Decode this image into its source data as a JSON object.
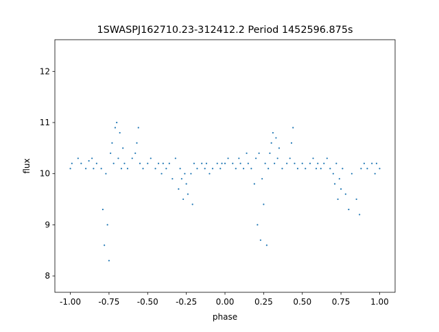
{
  "chart_data": {
    "type": "scatter",
    "title": "1SWASPJ162710.23-312412.2 Period 1452596.875s",
    "xlabel": "phase",
    "ylabel": "flux",
    "xlim": [
      -1.1,
      1.1
    ],
    "ylim": [
      7.68,
      12.62
    ],
    "xticks": [
      "-1.00",
      "-0.75",
      "-0.50",
      "-0.25",
      "0.00",
      "0.25",
      "0.50",
      "0.75",
      "1.00"
    ],
    "yticks": [
      "8",
      "9",
      "10",
      "11",
      "12"
    ],
    "grid": false,
    "legend": "none",
    "marker_color": "#1f77b4",
    "series": [
      {
        "x": [
          -1.0,
          -0.99,
          -0.95,
          -0.93,
          -0.9,
          -0.88,
          -0.86,
          -0.85,
          -0.83,
          -0.8,
          -0.79,
          -0.78,
          -0.77,
          -0.76,
          -0.75,
          -0.74,
          -0.73,
          -0.72,
          -0.71,
          -0.7,
          -0.69,
          -0.68,
          -0.67,
          -0.66,
          -0.65,
          -0.63,
          -0.6,
          -0.58,
          -0.57,
          -0.56,
          -0.55,
          -0.53,
          -0.5,
          -0.48,
          -0.45,
          -0.43,
          -0.41,
          -0.4,
          -0.38,
          -0.36,
          -0.34,
          -0.32,
          -0.3,
          -0.29,
          -0.28,
          -0.27,
          -0.26,
          -0.25,
          -0.24,
          -0.22,
          -0.21,
          -0.2,
          -0.18,
          -0.15,
          -0.13,
          -0.12,
          -0.1,
          -0.08,
          -0.05,
          -0.03,
          -0.02,
          0.0,
          0.02,
          0.05,
          0.07,
          0.09,
          0.1,
          0.12,
          0.14,
          0.15,
          0.17,
          0.19,
          0.2,
          0.21,
          0.22,
          0.23,
          0.24,
          0.25,
          0.26,
          0.27,
          0.28,
          0.29,
          0.3,
          0.31,
          0.32,
          0.33,
          0.34,
          0.35,
          0.37,
          0.4,
          0.42,
          0.43,
          0.44,
          0.45,
          0.47,
          0.5,
          0.52,
          0.55,
          0.57,
          0.59,
          0.6,
          0.62,
          0.64,
          0.66,
          0.68,
          0.7,
          0.71,
          0.72,
          0.73,
          0.74,
          0.75,
          0.76,
          0.78,
          0.8,
          0.82,
          0.85,
          0.87,
          0.88,
          0.9,
          0.92,
          0.95,
          0.97,
          0.98,
          1.0
        ],
        "y": [
          10.1,
          10.2,
          10.3,
          10.2,
          10.1,
          10.25,
          10.3,
          10.1,
          10.2,
          10.1,
          9.3,
          8.6,
          10.0,
          9.0,
          8.3,
          10.4,
          10.6,
          10.2,
          10.9,
          11.0,
          10.3,
          10.8,
          10.1,
          10.5,
          10.2,
          10.1,
          10.3,
          10.4,
          10.6,
          10.9,
          10.2,
          10.1,
          10.2,
          10.3,
          10.1,
          10.2,
          10.0,
          10.2,
          10.1,
          10.2,
          9.9,
          10.3,
          9.7,
          10.1,
          9.9,
          9.5,
          10.0,
          9.8,
          9.6,
          10.0,
          9.4,
          10.2,
          10.1,
          10.2,
          10.1,
          10.2,
          10.0,
          10.1,
          10.2,
          10.1,
          10.2,
          10.2,
          10.3,
          10.2,
          10.1,
          10.3,
          10.2,
          10.1,
          10.4,
          10.2,
          10.1,
          9.8,
          10.3,
          9.0,
          10.4,
          8.7,
          9.9,
          9.4,
          10.2,
          8.6,
          10.1,
          10.4,
          10.6,
          10.8,
          10.2,
          10.7,
          10.3,
          10.5,
          10.1,
          10.2,
          10.3,
          10.6,
          10.9,
          10.2,
          10.1,
          10.2,
          10.1,
          10.2,
          10.3,
          10.1,
          10.2,
          10.1,
          10.2,
          10.3,
          10.1,
          10.0,
          9.8,
          10.2,
          9.5,
          9.9,
          9.7,
          10.1,
          9.6,
          9.3,
          10.0,
          9.5,
          9.2,
          10.1,
          10.2,
          10.1,
          10.2,
          10.0,
          10.2,
          10.1
        ]
      }
    ]
  }
}
